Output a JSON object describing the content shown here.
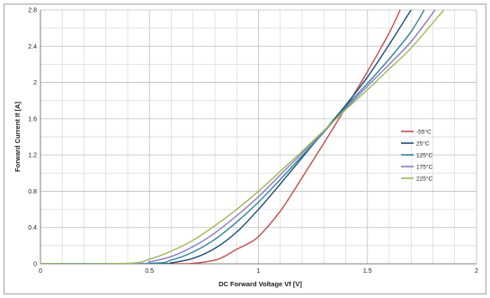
{
  "chart_data": {
    "type": "line",
    "xlabel": "DC Forward Voltage Vf [V]",
    "ylabel": "Forward Current If [A]",
    "xlim": [
      0,
      2
    ],
    "ylim": [
      0,
      2.8
    ],
    "x_ticks": [
      "0",
      "0.5",
      "1",
      "1.5",
      "2"
    ],
    "y_ticks": [
      "0",
      "0.4",
      "0.8",
      "1.2",
      "1.6",
      "2",
      "2.4",
      "2.8"
    ],
    "grid": true,
    "legend_position": "right",
    "series": [
      {
        "name": "-55°C",
        "color": "#c0504d",
        "x": [
          0,
          0.6,
          0.7,
          0.8,
          0.85,
          0.9,
          0.95,
          1.0,
          1.1,
          1.2,
          1.3,
          1.4,
          1.5,
          1.6,
          1.65
        ],
        "y": [
          0,
          0,
          0.005,
          0.04,
          0.09,
          0.16,
          0.22,
          0.3,
          0.58,
          0.95,
          1.33,
          1.72,
          2.12,
          2.55,
          2.8
        ]
      },
      {
        "name": "25°C",
        "color": "#1f4e79",
        "x": [
          0,
          0.55,
          0.6,
          0.7,
          0.8,
          0.9,
          1.0,
          1.1,
          1.2,
          1.3,
          1.4,
          1.5,
          1.6,
          1.7
        ],
        "y": [
          0,
          0,
          0.01,
          0.06,
          0.17,
          0.35,
          0.6,
          0.88,
          1.17,
          1.46,
          1.75,
          2.06,
          2.42,
          2.8
        ]
      },
      {
        "name": "125°C",
        "color": "#31849b",
        "x": [
          0,
          0.5,
          0.6,
          0.7,
          0.8,
          0.9,
          1.0,
          1.1,
          1.2,
          1.3,
          1.4,
          1.5,
          1.6,
          1.7,
          1.76
        ],
        "y": [
          0,
          0.005,
          0.04,
          0.13,
          0.27,
          0.46,
          0.68,
          0.93,
          1.19,
          1.45,
          1.73,
          1.99,
          2.26,
          2.56,
          2.8
        ]
      },
      {
        "name": "175°C",
        "color": "#8e7cc3",
        "x": [
          0,
          0.45,
          0.5,
          0.6,
          0.7,
          0.8,
          0.9,
          1.0,
          1.1,
          1.2,
          1.3,
          1.4,
          1.5,
          1.6,
          1.7,
          1.81
        ],
        "y": [
          0,
          0,
          0.02,
          0.08,
          0.19,
          0.34,
          0.53,
          0.74,
          0.98,
          1.22,
          1.46,
          1.71,
          1.96,
          2.2,
          2.45,
          2.8
        ]
      },
      {
        "name": "225°C",
        "color": "#9bbb59",
        "x": [
          0,
          0.4,
          0.5,
          0.6,
          0.7,
          0.8,
          0.9,
          1.0,
          1.1,
          1.2,
          1.3,
          1.4,
          1.5,
          1.6,
          1.7,
          1.85
        ],
        "y": [
          0,
          0.005,
          0.05,
          0.14,
          0.26,
          0.42,
          0.6,
          0.8,
          1.02,
          1.24,
          1.47,
          1.7,
          1.92,
          2.15,
          2.38,
          2.8
        ]
      }
    ]
  }
}
